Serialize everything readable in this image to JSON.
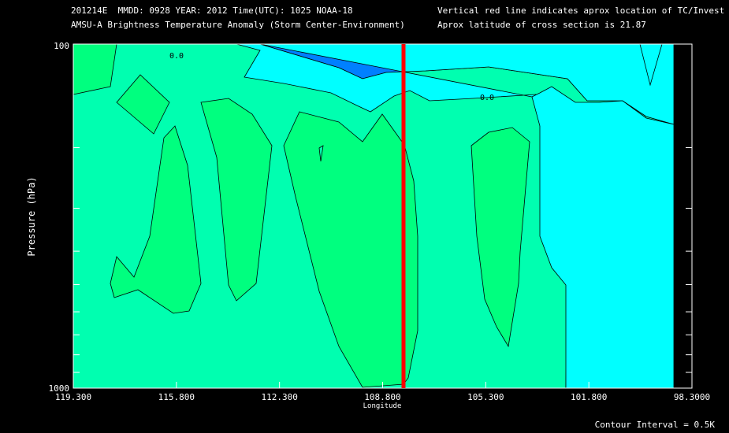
{
  "header": {
    "line1": "201214E  MMDD: 0928 YEAR: 2012 Time(UTC): 1025 NOAA-18",
    "line2": "AMSU-A Brightness Temperature Anomaly (Storm Center-Environment)",
    "note1": "Vertical red line indicates aprox location of TC/Invest",
    "note2": "Aprox latitude of cross section is 21.87"
  },
  "footer": {
    "contour_interval": "Contour Interval = 0.5K"
  },
  "chart_data": {
    "type": "contour",
    "xlabel": "Longitude",
    "ylabel": "Pressure (hPa)",
    "x_axis_reversed": true,
    "xlim": [
      119.3,
      98.3
    ],
    "ylim": [
      1000,
      100
    ],
    "y_scale": "log",
    "x_tick_labels": [
      "119.300",
      "115.800",
      "112.300",
      "108.800",
      "105.300",
      "101.800",
      "98.3000"
    ],
    "x_tick_values": [
      119.3,
      115.8,
      112.3,
      108.8,
      105.3,
      101.8,
      98.3
    ],
    "y_tick_labels": [
      "100",
      "1000"
    ],
    "y_tick_values": [
      100,
      1000
    ],
    "y_minor_ticks": [
      200,
      300,
      400,
      500,
      600,
      700,
      800,
      900
    ],
    "contour_labels": [
      "0.0",
      "0.0"
    ],
    "contour_interval_K": 0.5,
    "tc_longitude": 108.7,
    "colors": {
      "level_high": "#00ff7f",
      "level_mid": "#00ffb0",
      "level_low": "#00ffff",
      "level_lower": "#0080ff",
      "tc_line": "#ff0000",
      "no_data": "#000000"
    }
  }
}
